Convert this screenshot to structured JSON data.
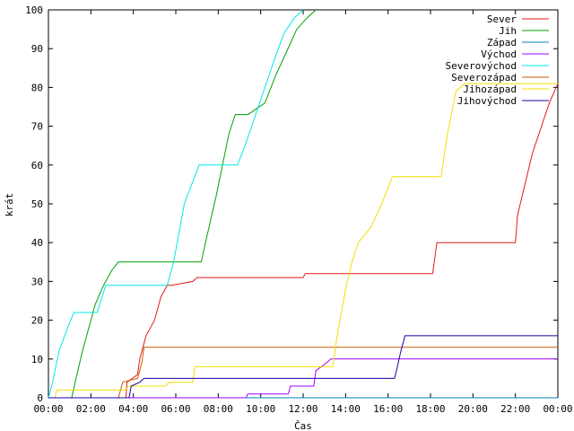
{
  "chart_data": {
    "type": "line",
    "xlabel": "Čas",
    "ylabel": "krát",
    "xlim": [
      0,
      24
    ],
    "ylim": [
      0,
      100
    ],
    "grid": false,
    "legend_position": "top-right",
    "x_ticks": [
      "00:00",
      "02:00",
      "04:00",
      "06:00",
      "08:00",
      "10:00",
      "12:00",
      "14:00",
      "16:00",
      "18:00",
      "20:00",
      "22:00",
      "00:00"
    ],
    "y_ticks": [
      "0",
      "10",
      "20",
      "30",
      "40",
      "50",
      "60",
      "70",
      "80",
      "90",
      "100"
    ],
    "series": [
      {
        "name": "Sever",
        "color": "#e31a1c",
        "x": [
          0,
          3.65,
          3.7,
          4.2,
          4.3,
          4.6,
          5,
          5.3,
          5.6,
          5.8,
          6.8,
          7,
          12,
          12.1,
          18.1,
          18.3,
          22,
          22.1,
          22.8,
          23.6,
          24
        ],
        "y": [
          0,
          0,
          4,
          6,
          10,
          16,
          20,
          26,
          29,
          29,
          30,
          31,
          31,
          32,
          32,
          40,
          40,
          47,
          63,
          76,
          81
        ]
      },
      {
        "name": "Jih",
        "color": "#00a000",
        "x": [
          0,
          1.1,
          1.3,
          1.6,
          2.2,
          2.6,
          3,
          3.3,
          7.2,
          7.4,
          7.9,
          8.2,
          8.5,
          8.8,
          9.4,
          10.2,
          10.7,
          11.2,
          11.7,
          12.2,
          12.6
        ],
        "y": [
          0,
          0,
          5,
          12,
          24,
          29,
          33,
          35,
          35,
          40,
          52,
          60,
          68,
          73,
          73,
          76,
          83,
          89,
          95,
          98,
          100
        ]
      },
      {
        "name": "Západ",
        "color": "#0087c7",
        "x": [
          0,
          24
        ],
        "y": [
          0,
          0
        ]
      },
      {
        "name": "Východ",
        "color": "#a000ff",
        "x": [
          0,
          9.3,
          9.4,
          11.3,
          11.4,
          12.5,
          12.6,
          13.1,
          13.3,
          13.6,
          24
        ],
        "y": [
          0,
          0,
          1,
          1,
          3,
          3,
          7,
          9,
          10,
          10,
          10
        ]
      },
      {
        "name": "Severovýchod",
        "color": "#00e8e8",
        "x": [
          0,
          0.2,
          0.5,
          0.9,
          1.2,
          2.3,
          2.7,
          3.1,
          5.6,
          5.9,
          6.4,
          7.1,
          8.9,
          9.2,
          9.7,
          10.2,
          10.7,
          11.1,
          11.6,
          12
        ],
        "y": [
          0,
          4,
          12,
          18,
          22,
          22,
          29,
          29,
          29,
          35,
          50,
          60,
          60,
          64,
          72,
          80,
          88,
          94,
          98,
          100
        ]
      },
      {
        "name": "Severozápad",
        "color": "#c85a00",
        "x": [
          0,
          3.3,
          3.5,
          4.2,
          4.4,
          4.5,
          24
        ],
        "y": [
          0,
          0,
          4,
          5,
          9,
          13,
          13
        ]
      },
      {
        "name": "Jihozápad",
        "color": "#f0e000",
        "x": [
          0,
          0.3,
          0.4,
          3.6,
          3.8,
          5.5,
          5.7,
          6.8,
          6.9,
          13.4,
          13.6,
          14,
          14.3,
          14.6,
          15.2,
          15.7,
          16.2,
          18.5,
          18.8,
          19.2,
          19.6,
          24
        ],
        "y": [
          0,
          0,
          2,
          2,
          3,
          3,
          4,
          4,
          8,
          8,
          16,
          28,
          35,
          40,
          44,
          50,
          57,
          57,
          68,
          79,
          81,
          81
        ]
      },
      {
        "name": "Jihovýchod",
        "color": "#1a00a0",
        "x": [
          0,
          3.8,
          3.9,
          4.3,
          4.5,
          16.3,
          16.4,
          16.6,
          16.8,
          24
        ],
        "y": [
          0,
          0,
          3,
          4,
          5,
          5,
          7,
          12,
          16,
          16
        ]
      }
    ]
  }
}
